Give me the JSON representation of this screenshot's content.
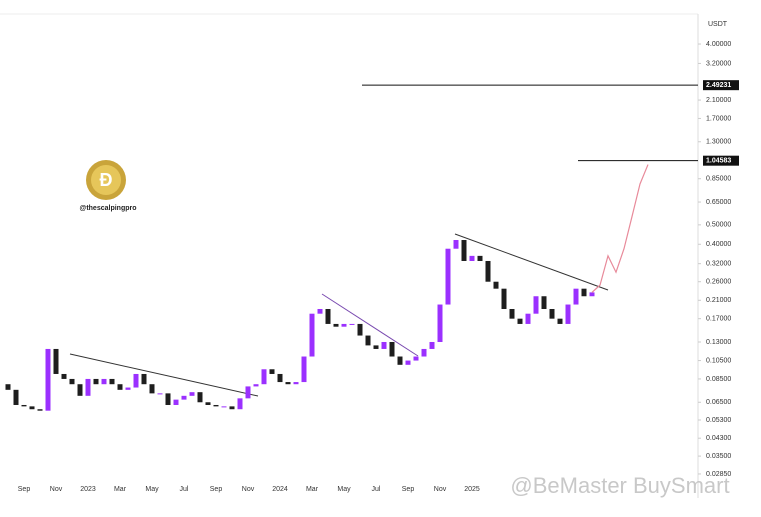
{
  "chart_data": {
    "type": "candlestick",
    "unit": "USDT",
    "handle": "@thescalpingpro",
    "watermark": "@BeMaster BuySmart",
    "log_scale": true,
    "up_color": "#9b30ff",
    "down_color": "#1e1e1e",
    "categories": [
      null,
      null,
      "Sep",
      null,
      null,
      null,
      "Nov",
      null,
      null,
      null,
      "2023",
      null,
      null,
      null,
      "Mar",
      null,
      null,
      null,
      "May",
      null,
      null,
      null,
      "Jul",
      null,
      null,
      null,
      "Sep",
      null,
      null,
      null,
      "Nov",
      null,
      null,
      null,
      "2024",
      null,
      null,
      null,
      "Mar",
      null,
      null,
      null,
      "May",
      null,
      null,
      null,
      "Jul",
      null,
      null,
      null,
      "Sep",
      null,
      null,
      null,
      "Nov",
      null,
      null,
      null,
      "2025",
      null,
      null,
      null,
      null,
      null,
      null,
      null,
      null,
      null,
      null,
      null,
      null,
      null,
      null,
      null,
      null,
      null,
      null,
      null,
      null,
      null,
      null
    ],
    "open": [
      0.08,
      0.075,
      0.063,
      0.062,
      0.06,
      0.059,
      0.12,
      0.09,
      0.085,
      0.08,
      0.07,
      0.085,
      0.08,
      0.085,
      0.08,
      0.075,
      0.077,
      0.09,
      0.08,
      0.072,
      0.072,
      0.063,
      0.067,
      0.07,
      0.073,
      0.065,
      0.063,
      0.062,
      0.062,
      0.06,
      0.068,
      0.078,
      0.08,
      0.095,
      0.09,
      0.082,
      0.08,
      0.082,
      0.11,
      0.18,
      0.19,
      0.16,
      0.155,
      0.16,
      0.16,
      0.14,
      0.125,
      0.12,
      0.13,
      0.11,
      0.1,
      0.105,
      0.11,
      0.12,
      0.13,
      0.2,
      0.38,
      0.42,
      0.33,
      0.35,
      0.33,
      0.26,
      0.24,
      0.19,
      0.17,
      0.16,
      0.18,
      0.22,
      0.19,
      0.17,
      0.16,
      0.2,
      0.24,
      0.22,
      null,
      null,
      null,
      null,
      null,
      null,
      null
    ],
    "close": [
      0.075,
      0.063,
      0.062,
      0.06,
      0.059,
      0.12,
      0.09,
      0.085,
      0.08,
      0.07,
      0.085,
      0.08,
      0.085,
      0.08,
      0.075,
      0.077,
      0.09,
      0.08,
      0.072,
      0.072,
      0.063,
      0.067,
      0.07,
      0.073,
      0.065,
      0.063,
      0.062,
      0.062,
      0.06,
      0.068,
      0.078,
      0.08,
      0.095,
      0.09,
      0.082,
      0.08,
      0.082,
      0.11,
      0.18,
      0.19,
      0.16,
      0.155,
      0.16,
      0.16,
      0.14,
      0.125,
      0.12,
      0.13,
      0.11,
      0.1,
      0.105,
      0.11,
      0.12,
      0.13,
      0.2,
      0.38,
      0.42,
      0.33,
      0.35,
      0.33,
      0.26,
      0.24,
      0.19,
      0.17,
      0.16,
      0.18,
      0.22,
      0.19,
      0.17,
      0.16,
      0.2,
      0.24,
      0.22,
      0.23,
      null,
      null,
      null,
      null,
      null,
      null,
      null
    ],
    "projection": {
      "color": "#e88a9a",
      "values": [
        null,
        null,
        null,
        null,
        null,
        null,
        null,
        null,
        null,
        null,
        null,
        null,
        null,
        null,
        null,
        null,
        null,
        null,
        null,
        null,
        null,
        null,
        null,
        null,
        null,
        null,
        null,
        null,
        null,
        null,
        null,
        null,
        null,
        null,
        null,
        null,
        null,
        null,
        null,
        null,
        null,
        null,
        null,
        null,
        null,
        null,
        null,
        null,
        null,
        null,
        null,
        null,
        null,
        null,
        null,
        null,
        null,
        null,
        null,
        null,
        null,
        null,
        null,
        null,
        null,
        null,
        null,
        null,
        null,
        null,
        null,
        null,
        null,
        0.23,
        0.25,
        0.35,
        0.29,
        0.38,
        0.55,
        0.8,
        1.0
      ]
    },
    "price_levels": [
      2.49231,
      1.04583
    ],
    "ylim": [
      0.0237,
      5.65
    ],
    "yticks": [
      {
        "value": 4,
        "label": "4.00000"
      },
      {
        "value": 3.2,
        "label": "3.20000"
      },
      {
        "value": 2.1,
        "label": "2.10000"
      },
      {
        "value": 1.7,
        "label": "1.70000"
      },
      {
        "value": 1.3,
        "label": "1.30000"
      },
      {
        "value": 0.85,
        "label": "0.85000"
      },
      {
        "value": 0.65,
        "label": "0.65000"
      },
      {
        "value": 0.5,
        "label": "0.50000"
      },
      {
        "value": 0.4,
        "label": "0.40000"
      },
      {
        "value": 0.32,
        "label": "0.32000"
      },
      {
        "value": 0.26,
        "label": "0.26000"
      },
      {
        "value": 0.21,
        "label": "0.21000"
      },
      {
        "value": 0.17,
        "label": "0.17000"
      },
      {
        "value": 0.13,
        "label": "0.13000"
      },
      {
        "value": 0.105,
        "label": "0.10500"
      },
      {
        "value": 0.085,
        "label": "0.08500"
      },
      {
        "value": 0.065,
        "label": "0.06500"
      },
      {
        "value": 0.053,
        "label": "0.05300"
      },
      {
        "value": 0.043,
        "label": "0.04300"
      },
      {
        "value": 0.035,
        "label": "0.03500"
      },
      {
        "value": 0.0285,
        "label": "0.02850"
      }
    ]
  }
}
